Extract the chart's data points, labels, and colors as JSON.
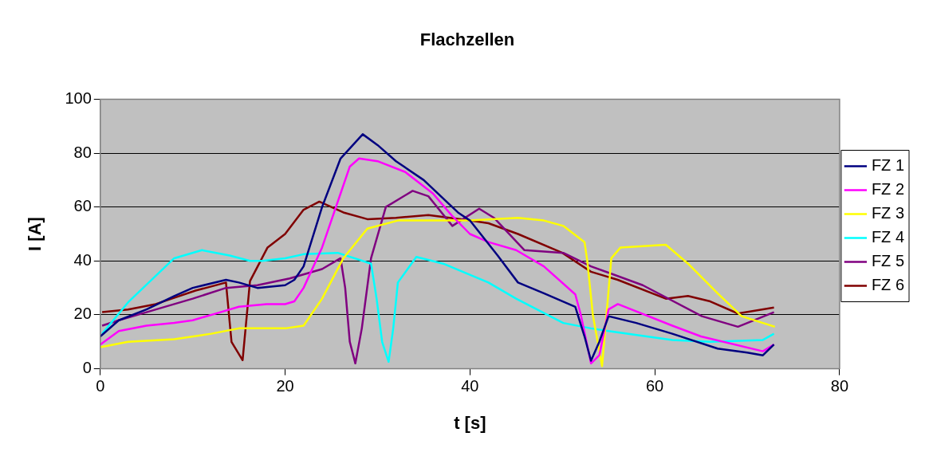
{
  "chart_data": {
    "type": "line",
    "title": "Flachzellen",
    "xlabel": "t [s]",
    "ylabel": "I [A]",
    "xlim": [
      0,
      80
    ],
    "xticks": [
      0,
      20,
      40,
      60,
      80
    ],
    "ylim": [
      0,
      100
    ],
    "yticks": [
      0,
      20,
      40,
      60,
      80,
      100
    ],
    "grid": "y",
    "legend": "right",
    "marker": "none",
    "line_style": "solid",
    "series": [
      {
        "name": "FZ 1",
        "color": "#000080",
        "x": [
          0,
          2,
          5,
          8,
          10,
          13.6,
          15,
          17,
          20,
          21,
          22,
          24,
          26,
          28.4,
          30,
          32,
          35,
          38.7,
          40,
          43,
          45.2,
          48,
          51.4,
          52.4,
          53.1,
          54,
          55,
          58,
          61.9,
          66.8,
          70,
          71.7,
          72.9
        ],
        "values": [
          12,
          18,
          22,
          27,
          30,
          33,
          32,
          30,
          31,
          33,
          38,
          60,
          78,
          87,
          83,
          77,
          70,
          58,
          55,
          42,
          32,
          28,
          23,
          12,
          3,
          10,
          19.5,
          17,
          13,
          7.5,
          6,
          5,
          9
        ]
      },
      {
        "name": "FZ 2",
        "color": "#ff00ff",
        "x": [
          0,
          2,
          5,
          8,
          10,
          13,
          15,
          18,
          20,
          21,
          22,
          24,
          26,
          27,
          28,
          30,
          33,
          36,
          38,
          40,
          42,
          45,
          48,
          51.4,
          52,
          53.1,
          54,
          55,
          56,
          61.9,
          65,
          71.7,
          72.9
        ],
        "values": [
          9,
          14,
          16,
          17,
          18,
          21,
          23,
          24,
          24,
          25,
          30,
          45,
          65,
          75,
          78,
          77,
          73,
          65,
          57,
          50,
          47,
          44,
          38,
          27.6,
          20,
          2,
          5,
          22,
          24,
          16,
          12,
          6.5,
          9
        ]
      },
      {
        "name": "FZ 3",
        "color": "#ffff00",
        "x": [
          0,
          3,
          8,
          12,
          15,
          18,
          20,
          22,
          24,
          26.3,
          28.9,
          32.2,
          40,
          45.2,
          48,
          50.1,
          52.4,
          52.7,
          53.3,
          54.3,
          55.3,
          56.3,
          61.2,
          63.6,
          66.8,
          69.4,
          73
        ],
        "values": [
          8,
          10,
          11,
          13,
          15,
          15,
          15,
          16,
          26,
          41,
          52,
          55,
          55,
          56,
          55,
          53,
          47,
          40,
          20,
          1,
          41,
          45,
          46,
          39,
          28,
          19.5,
          15.6
        ]
      },
      {
        "name": "FZ 4",
        "color": "#00ffff",
        "x": [
          0.2,
          3.1,
          8,
          11,
          14,
          16.2,
          17.5,
          20,
          22,
          25.7,
          29.3,
          29.9,
          30.5,
          31.2,
          31.7,
          32.2,
          34.2,
          37.1,
          42,
          45,
          50.1,
          53.1,
          55,
          61.9,
          66,
          71.7,
          72.9
        ],
        "values": [
          13,
          25,
          41,
          44,
          42,
          40,
          40,
          41,
          42.5,
          43,
          39,
          26,
          10,
          2.6,
          15,
          32,
          41.5,
          39,
          32,
          26,
          17,
          15,
          14,
          10.7,
          10,
          10.7,
          13
        ]
      },
      {
        "name": "FZ 5",
        "color": "#800080",
        "x": [
          0.2,
          2,
          5,
          10,
          13.6,
          17,
          20.5,
          24,
          26,
          26.5,
          27,
          27.6,
          28.3,
          29.3,
          30.9,
          33.8,
          35.5,
          38.1,
          41,
          42.6,
          45.9,
          50.1,
          53.1,
          58.7,
          65.1,
          69,
          72.9
        ],
        "values": [
          16,
          18,
          21,
          26,
          30,
          31,
          33.5,
          37,
          41,
          30,
          10,
          2,
          15,
          41,
          60,
          66,
          64,
          53,
          59.4,
          56,
          44,
          43,
          38,
          31,
          19.5,
          15.6,
          21
        ]
      },
      {
        "name": "FZ 6",
        "color": "#800000",
        "x": [
          0.2,
          3,
          6,
          10.3,
          13.6,
          14.2,
          15.4,
          16.2,
          18.1,
          20,
          22,
          23.7,
          26.3,
          28.9,
          32,
          35.5,
          40,
          42,
          45.2,
          50,
          53.1,
          56,
          61.2,
          63.6,
          66,
          69,
          72.9
        ],
        "values": [
          21,
          22,
          24,
          29,
          32,
          10,
          3.2,
          32.5,
          45,
          50,
          59,
          62,
          58,
          55.5,
          56,
          57,
          55,
          54,
          50,
          43,
          36,
          33,
          26,
          27,
          25,
          20.5,
          22.7
        ]
      }
    ]
  }
}
